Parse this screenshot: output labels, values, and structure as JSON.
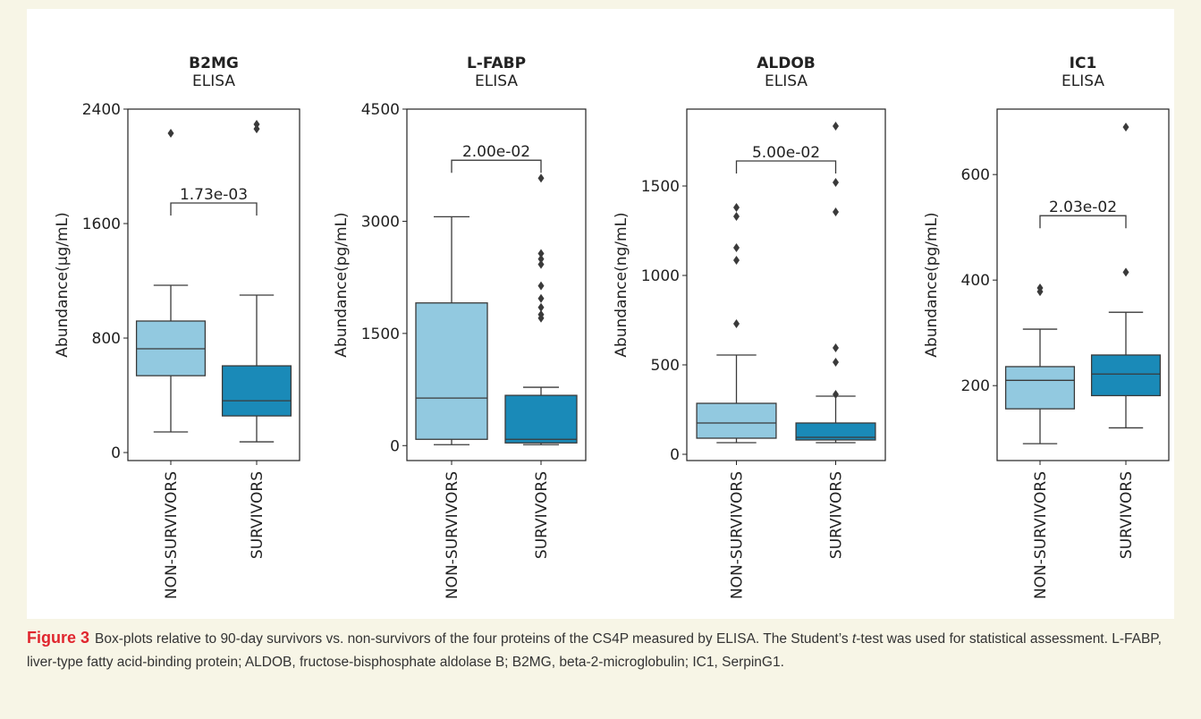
{
  "chart_data": [
    {
      "type": "box",
      "title": "B2MG",
      "subtitle": "ELISA",
      "ylabel": "Abundance(µg/mL)",
      "categories": [
        "NON-SURVIVORS",
        "SURVIVORS"
      ],
      "colors": [
        "#92c9e0",
        "#1a8ab8"
      ],
      "ylim": [
        -56,
        2400
      ],
      "yticks": [
        0,
        800,
        1600,
        2400
      ],
      "boxes": [
        {
          "whislo": 144,
          "q1": 537,
          "med": 725,
          "q3": 919,
          "whishi": 1169,
          "fliers": [
            2231
          ]
        },
        {
          "whislo": 75,
          "q1": 256,
          "med": 362,
          "q3": 606,
          "whishi": 1100,
          "fliers": [
            2294,
            2262
          ]
        }
      ],
      "annotation": {
        "text": "1.73e-03",
        "y": 1744
      }
    },
    {
      "type": "box",
      "title": "L-FABP",
      "subtitle": "ELISA",
      "ylabel": "Abundance(pg/mL)",
      "categories": [
        "NON-SURVIVORS",
        "SURVIVORS"
      ],
      "colors": [
        "#92c9e0",
        "#1a8ab8"
      ],
      "ylim": [
        -200,
        4500
      ],
      "yticks": [
        0,
        1500,
        3000,
        4500
      ],
      "boxes": [
        {
          "whislo": 12,
          "q1": 84,
          "med": 636,
          "q3": 1908,
          "whishi": 3060,
          "fliers": []
        },
        {
          "whislo": 12,
          "q1": 36,
          "med": 84,
          "q3": 672,
          "whishi": 780,
          "fliers": [
            3576,
            2568,
            2496,
            2424,
            2136,
            1968,
            1848,
            1752,
            1704
          ]
        }
      ],
      "annotation": {
        "text": "2.00e-02",
        "y": 3816
      }
    },
    {
      "type": "box",
      "title": "ALDOB",
      "subtitle": "ELISA",
      "ylabel": "Abundance(ng/mL)",
      "categories": [
        "NON-SURVIVORS",
        "SURVIVORS"
      ],
      "colors": [
        "#92c9e0",
        "#1a8ab8"
      ],
      "ylim": [
        -35,
        1930
      ],
      "yticks": [
        0,
        500,
        1000,
        1500
      ],
      "boxes": [
        {
          "whislo": 65,
          "q1": 90,
          "med": 175,
          "q3": 285,
          "whishi": 555,
          "fliers": [
            1380,
            1330,
            1155,
            1085,
            730
          ]
        },
        {
          "whislo": 65,
          "q1": 80,
          "med": 95,
          "q3": 175,
          "whishi": 325,
          "fliers": [
            1835,
            1520,
            1355,
            595,
            515,
            335
          ]
        }
      ],
      "annotation": {
        "text": "5.00e-02",
        "y": 1640
      }
    },
    {
      "type": "box",
      "title": "IC1",
      "subtitle": "ELISA",
      "ylabel": "Abundance(pg/mL)",
      "categories": [
        "NON-SURVIVORS",
        "SURVIVORS"
      ],
      "colors": [
        "#92c9e0",
        "#1a8ab8"
      ],
      "ylim": [
        58,
        724
      ],
      "yticks": [
        200,
        400,
        600
      ],
      "boxes": [
        {
          "whislo": 90,
          "q1": 156,
          "med": 210,
          "q3": 236,
          "whishi": 307,
          "fliers": [
            385,
            378
          ]
        },
        {
          "whislo": 120,
          "q1": 181,
          "med": 222,
          "q3": 258,
          "whishi": 339,
          "fliers": [
            415,
            690
          ]
        }
      ],
      "annotation": {
        "text": "2.03e-02",
        "y": 522
      }
    }
  ],
  "caption": {
    "label": "Figure 3",
    "before": "Box-plots relative to 90-day survivors vs. non-survivors of the four proteins of the CS4P measured by ELISA. The Student’s ",
    "italic": "t",
    "after": "-test was used for statistical assessment. L-FABP, liver-type fatty acid-binding protein; ALDOB, fructose-bisphosphate aldolase B; B2MG, beta-2-microglobulin; IC1, SerpinG1."
  }
}
